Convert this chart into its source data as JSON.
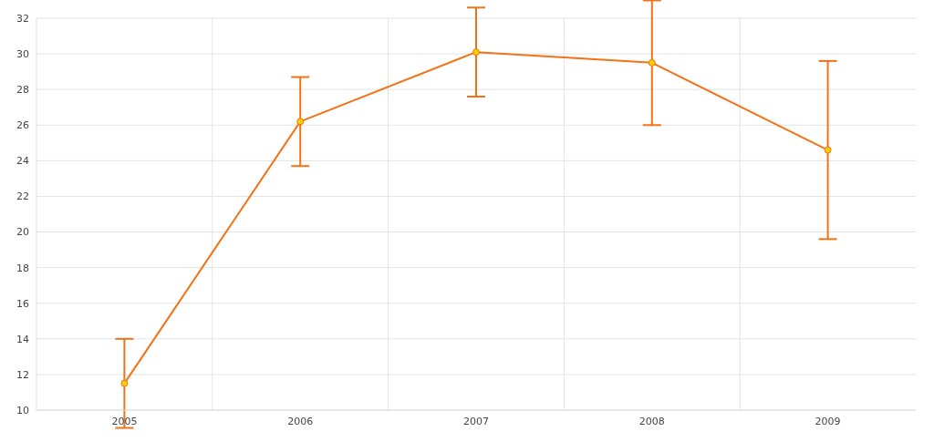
{
  "chart_data": {
    "type": "line",
    "categories": [
      "2005",
      "2006",
      "2007",
      "2008",
      "2009"
    ],
    "series": [
      {
        "color": "#f47216",
        "values": [
          11.5,
          26.2,
          30.1,
          29.5,
          24.6
        ],
        "errors": [
          2.5,
          2.5,
          2.5,
          3.5,
          5
        ]
      }
    ],
    "ylim": [
      10,
      32
    ],
    "yticks": [
      10,
      12,
      14,
      16,
      18,
      20,
      22,
      24,
      26,
      28,
      30,
      32
    ],
    "grid": true,
    "marker": "circle",
    "line_style": "solid"
  }
}
